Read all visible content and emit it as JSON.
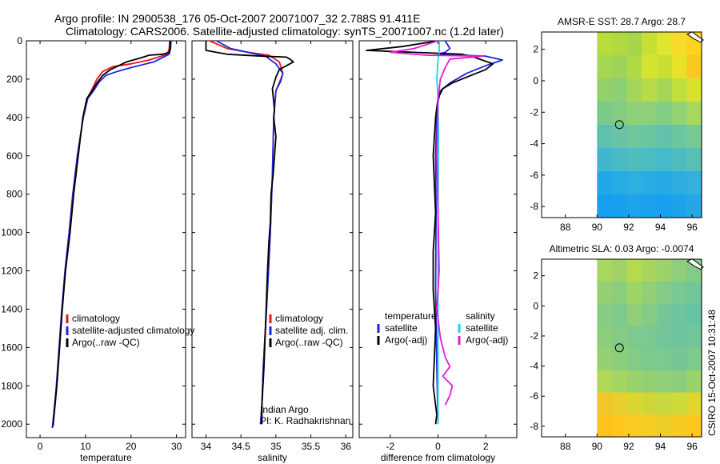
{
  "header": {
    "title_line1": "Argo profile: IN 2900538_176 05-Oct-2007 20071007_32 2.788S 91.411E",
    "title_line2": "Climatology: CARS2006. Satellite-adjusted climatology: synTS_20071007.nc (1.2d later)"
  },
  "side_label": "CSIRO 15-Oct-2007 10:31:48",
  "colors": {
    "red": "#e8141b",
    "blue": "#1f24e0",
    "black": "#000000",
    "cyan": "#19d6e6",
    "magenta": "#e619d6"
  },
  "chart_data": [
    {
      "id": "temperature",
      "type": "line",
      "xlabel": "temperature",
      "ylabel": "",
      "xlim": [
        -3,
        32
      ],
      "ylim": [
        2070,
        0
      ],
      "xticks": [
        0,
        10,
        20,
        30
      ],
      "yticks": [
        0,
        200,
        400,
        600,
        800,
        1000,
        1200,
        1400,
        1600,
        1800,
        2000
      ],
      "legend": {
        "placement": "lower-middle",
        "entries": [
          {
            "label": "climatology",
            "color": "red"
          },
          {
            "label": "satellite-adjusted climatology",
            "color": "blue"
          },
          {
            "label": "Argo(..raw -QC)",
            "color": "black"
          }
        ]
      },
      "series": [
        {
          "name": "climatology",
          "color": "red",
          "x": [
            28.5,
            28.4,
            28.0,
            24,
            20,
            16,
            13.8,
            12.5,
            11.5,
            10.4,
            9.5,
            8.2,
            7.2,
            6.4,
            5.5,
            4.8,
            4.2,
            3.6,
            3.2,
            2.8,
            2.7
          ],
          "y": [
            0,
            40,
            70,
            100,
            120,
            135,
            160,
            200,
            250,
            300,
            400,
            600,
            800,
            1000,
            1200,
            1400,
            1600,
            1800,
            1900,
            2000,
            2020
          ]
        },
        {
          "name": "satellite-adjusted climatology",
          "color": "blue",
          "x": [
            28.8,
            28.7,
            28.4,
            25,
            20,
            17,
            14.5,
            13,
            11.8,
            10.5,
            9.5,
            8.2,
            7.2,
            6.4,
            5.5,
            4.8,
            4.2,
            3.6,
            3.2,
            2.8,
            2.7
          ],
          "y": [
            0,
            40,
            70,
            110,
            140,
            160,
            180,
            215,
            260,
            300,
            400,
            600,
            800,
            1000,
            1200,
            1400,
            1600,
            1800,
            1900,
            2000,
            2020
          ]
        },
        {
          "name": "Argo(..raw -QC)",
          "color": "black",
          "x": [
            28.6,
            28.6,
            28.4,
            27,
            24,
            22,
            19,
            15.5,
            13.8,
            12.5,
            11.5,
            10.3,
            9.4,
            8.4,
            7.4,
            6.6,
            5.6,
            4.9,
            4.3,
            3.7,
            3.3,
            2.9,
            2.9
          ],
          "y": [
            0,
            40,
            60,
            70,
            75,
            90,
            110,
            150,
            180,
            220,
            260,
            300,
            400,
            600,
            800,
            1000,
            1200,
            1400,
            1600,
            1800,
            1900,
            2000,
            2010
          ]
        }
      ]
    },
    {
      "id": "salinity",
      "type": "line",
      "xlabel": "salinity",
      "xlim": [
        33.8,
        36.1
      ],
      "ylim": [
        2070,
        0
      ],
      "xticks": [
        34,
        34.5,
        35,
        35.5,
        36
      ],
      "xtick_labels": [
        "34",
        "34.5",
        "35",
        "35.5",
        "36"
      ],
      "legend": {
        "placement": "lower-middle",
        "entries": [
          {
            "label": "climatology",
            "color": "red"
          },
          {
            "label": "satellite adj. clim.",
            "color": "blue"
          },
          {
            "label": "Argo(..raw -QC)",
            "color": "black"
          }
        ]
      },
      "annotation": [
        "Indian Argo",
        "PI: K. Radhakrishnan"
      ],
      "series": [
        {
          "name": "climatology",
          "color": "red",
          "x": [
            34.05,
            34.3,
            34.6,
            34.9,
            35.05,
            35.1,
            35.07,
            35.0,
            34.97,
            34.95,
            34.92,
            34.88,
            34.85,
            34.82,
            34.8,
            34.78
          ],
          "y": [
            0,
            40,
            60,
            75,
            110,
            170,
            200,
            260,
            400,
            700,
            1000,
            1300,
            1500,
            1700,
            1900,
            2000
          ]
        },
        {
          "name": "satellite adj. clim.",
          "color": "blue",
          "x": [
            34.15,
            34.35,
            34.6,
            34.85,
            35.0,
            35.1,
            35.07,
            35.0,
            34.97,
            34.95,
            34.92,
            34.88,
            34.85,
            34.82,
            34.8,
            34.78
          ],
          "y": [
            0,
            40,
            60,
            80,
            120,
            170,
            210,
            260,
            400,
            700,
            1000,
            1300,
            1500,
            1700,
            1900,
            2000
          ]
        },
        {
          "name": "Argo(..raw -QC)",
          "color": "black",
          "x": [
            34.0,
            34.0,
            34.3,
            34.8,
            35.15,
            35.2,
            35.25,
            35.05,
            35.0,
            34.95,
            34.98,
            34.97,
            35.0,
            34.96,
            34.93,
            34.92,
            34.9,
            34.88,
            34.87,
            34.85,
            34.83,
            34.8,
            34.8
          ],
          "y": [
            0,
            50,
            70,
            80,
            85,
            95,
            110,
            150,
            190,
            250,
            360,
            400,
            500,
            700,
            800,
            950,
            1050,
            1200,
            1300,
            1500,
            1700,
            1900,
            2000
          ]
        }
      ]
    },
    {
      "id": "difference",
      "type": "line",
      "xlabel": "difference from climatology",
      "xlim": [
        -3.3,
        3.3
      ],
      "ylim": [
        2070,
        0
      ],
      "xticks": [
        -2,
        0,
        2
      ],
      "legend": {
        "placement": "lower-middle",
        "columns": [
          {
            "header": "temperature",
            "entries": [
              {
                "label": "satellite",
                "color": "blue"
              },
              {
                "label": "Argo(-adj)",
                "color": "black"
              }
            ]
          },
          {
            "header": "salinity",
            "entries": [
              {
                "label": "satellite",
                "color": "cyan"
              },
              {
                "label": "Argo(-adj)",
                "color": "magenta"
              }
            ]
          }
        ]
      },
      "series": [
        {
          "name": "temperature satellite",
          "color": "blue",
          "x": [
            0.3,
            0.5,
            0.3,
            0.0,
            2.0,
            2.7,
            2.0,
            1.2,
            0.5,
            0.1,
            0.0,
            -0.05,
            -0.1,
            -0.08,
            -0.1,
            -0.05,
            0.0
          ],
          "y": [
            0,
            40,
            60,
            70,
            80,
            100,
            130,
            170,
            220,
            260,
            320,
            400,
            600,
            900,
            1300,
            1700,
            2000
          ]
        },
        {
          "name": "temperature Argo(-adj)",
          "color": "black",
          "x": [
            0.0,
            -1.5,
            -3.0,
            1.0,
            1.5,
            2.3,
            2.0,
            1.4,
            0.6,
            0.2,
            0.0,
            -0.1,
            -0.2,
            -0.1,
            -0.2,
            -0.2,
            -0.1,
            -0.15,
            -0.2,
            -0.1,
            -0.05,
            -0.1
          ],
          "y": [
            0,
            30,
            50,
            70,
            85,
            120,
            150,
            180,
            220,
            250,
            300,
            400,
            600,
            900,
            1100,
            1300,
            1500,
            1650,
            1800,
            1900,
            1950,
            2000
          ]
        },
        {
          "name": "salinity satellite",
          "color": "cyan",
          "x": [
            0.05,
            0.05,
            0.0,
            -0.05,
            0.0,
            0.02,
            0.0,
            0.0,
            0.0
          ],
          "y": [
            0,
            60,
            100,
            200,
            300,
            500,
            1000,
            1500,
            2000
          ]
        },
        {
          "name": "salinity Argo(-adj)",
          "color": "magenta",
          "x": [
            0.0,
            -1.0,
            -2.0,
            -0.5,
            1.9,
            0.5,
            0.3,
            0.1,
            0.0,
            -0.05,
            0.0,
            0.05,
            -0.05,
            0.1,
            0.3,
            0.5,
            0.2,
            0.6,
            0.5,
            0.3
          ],
          "y": [
            0,
            40,
            60,
            75,
            80,
            95,
            140,
            200,
            300,
            600,
            900,
            1200,
            1400,
            1550,
            1650,
            1700,
            1750,
            1800,
            1850,
            1900
          ]
        }
      ]
    },
    {
      "id": "sst_map",
      "type": "heatmap",
      "title": "AMSR-E SST: 28.7 Argo: 28.7",
      "xlim": [
        86.5,
        96.6
      ],
      "ylim": [
        -8.7,
        3.1
      ],
      "xticks": [
        88,
        90,
        92,
        94,
        96
      ],
      "yticks": [
        2,
        0,
        -2,
        -4,
        -6,
        -8
      ],
      "data_lon_range": [
        90,
        96.6
      ],
      "float_position": {
        "lon": 91.411,
        "lat": -2.788
      },
      "color_rows": [
        [
          "#b7dc3b",
          "#b1da40",
          "#a8d64a",
          "#c6e035",
          "#e0e52d",
          "#f5dc28",
          "#ffd21e"
        ],
        [
          "#a6d751",
          "#9ed45a",
          "#b0da45",
          "#d5e431",
          "#c9e033",
          "#e8e12a",
          "#f8c823"
        ],
        [
          "#93d06b",
          "#8ccf75",
          "#a5d65a",
          "#b7dc47",
          "#a4d65a",
          "#c0df3d",
          "#d8e22f"
        ],
        [
          "#7cc98c",
          "#84cc82",
          "#8fd07a",
          "#8dcf7a",
          "#84cc85",
          "#94d273",
          "#a8d65e"
        ],
        [
          "#5dc1ad",
          "#68c4a4",
          "#70c79b",
          "#6ac6a1",
          "#62c3aa",
          "#6cc6a0",
          "#78c994"
        ],
        [
          "#3fb8cf",
          "#48bbc6",
          "#4fbdbd",
          "#4bbcc2",
          "#45bac8",
          "#4ebcbf",
          "#58bfb4"
        ],
        [
          "#22a7e8",
          "#27abe4",
          "#2faee0",
          "#2aace3",
          "#26aae6",
          "#2dade1",
          "#34b0dc"
        ],
        [
          "#149fef",
          "#189fee",
          "#1ea4ea",
          "#1aa2ec",
          "#16a0ee",
          "#1ea3ea",
          "#24a6e7"
        ]
      ]
    },
    {
      "id": "sla_map",
      "type": "heatmap",
      "title": "Altimetric SLA: 0.03 Argo: -0.0074",
      "xlim": [
        86.5,
        96.6
      ],
      "ylim": [
        -8.7,
        3.1
      ],
      "xticks": [
        88,
        90,
        92,
        94,
        96
      ],
      "yticks": [
        2,
        0,
        -2,
        -4,
        -6,
        -8
      ],
      "data_lon_range": [
        90,
        96.6
      ],
      "float_position": {
        "lon": 91.411,
        "lat": -2.788
      },
      "color_rows": [
        [
          "#a9d65c",
          "#9fd367",
          "#b4da50",
          "#a8d65d",
          "#9cd26b",
          "#8fce7a",
          "#86cb85"
        ],
        [
          "#96d072",
          "#8ccd7c",
          "#a0d466",
          "#92cf77",
          "#84cb87",
          "#7ac990",
          "#72c69a"
        ],
        [
          "#87cc82",
          "#7ec98c",
          "#90cf78",
          "#84cb86",
          "#76c795",
          "#6ec59e",
          "#67c3a5"
        ],
        [
          "#8ccd7c",
          "#84cb86",
          "#7ec98c",
          "#7ac990",
          "#72c69a",
          "#6ec59e",
          "#72c69a"
        ],
        [
          "#96d072",
          "#8ccd7c",
          "#84cb86",
          "#7ec98c",
          "#7ac990",
          "#76c795",
          "#7ec98c"
        ],
        [
          "#b1d957",
          "#a5d562",
          "#9ad26c",
          "#94d072",
          "#90cf78",
          "#8ccd7c",
          "#9ad26c"
        ],
        [
          "#f0c72a",
          "#ead02d",
          "#dcd632",
          "#d0d638",
          "#c8d83e",
          "#cddc3a",
          "#dfd630"
        ],
        [
          "#ffc21c",
          "#ffc81f",
          "#fbcb22",
          "#f4ce25",
          "#efcd28",
          "#f6cb24",
          "#ffc71e"
        ]
      ]
    }
  ]
}
